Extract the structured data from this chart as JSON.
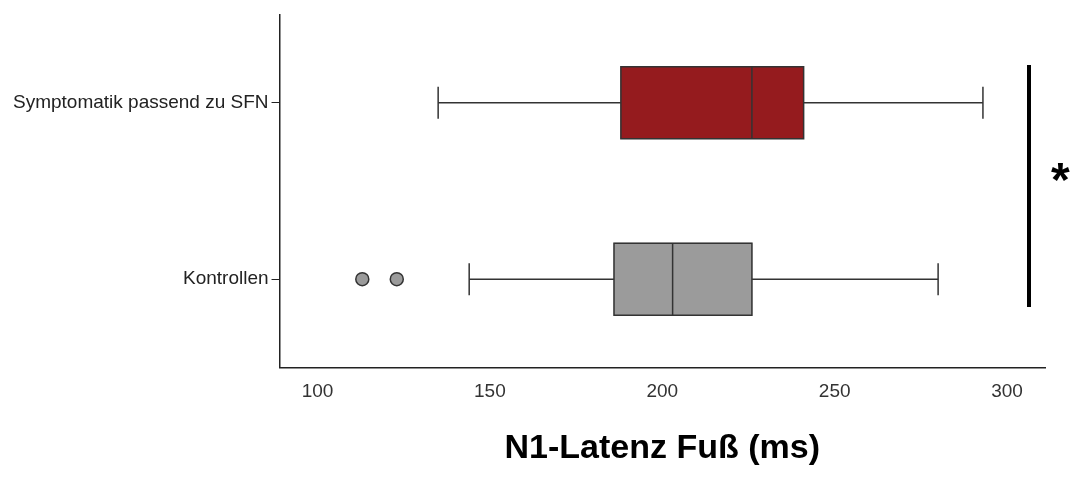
{
  "chart_data": {
    "type": "box",
    "orientation": "horizontal",
    "xlabel": "N1-Latenz Fuß (ms)",
    "categories": [
      "Symptomatik passend zu SFN",
      "Kontrollen"
    ],
    "colors": [
      "#951b1e",
      "#9b9b9b"
    ],
    "boxes": [
      {
        "low": 135,
        "q1": 188,
        "median": 226,
        "q3": 241,
        "high": 293
      },
      {
        "low": 144,
        "q1": 186,
        "median": 203,
        "q3": 226,
        "high": 280,
        "outliers": [
          113,
          123
        ]
      }
    ],
    "xlim": [
      89,
      311
    ],
    "xticks": [
      100,
      150,
      200,
      250,
      300
    ],
    "grid": false,
    "legend": false,
    "annotations": [
      "*"
    ]
  }
}
